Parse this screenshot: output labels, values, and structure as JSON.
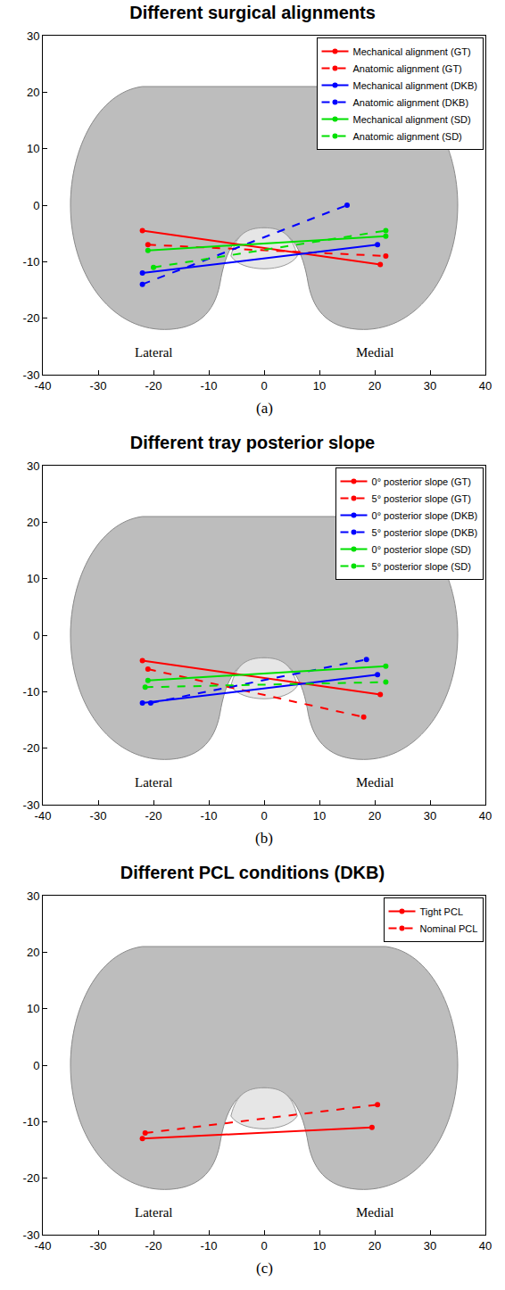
{
  "chart_data": [
    {
      "type": "line",
      "title": "Different surgical alignments",
      "panel_label": "(a)",
      "xlim": [
        -40,
        40
      ],
      "xticks": [
        -40,
        -30,
        -20,
        -10,
        0,
        10,
        20,
        30,
        40
      ],
      "ylim": [
        -30,
        30
      ],
      "yticks": [
        -30,
        -20,
        -10,
        0,
        10,
        20,
        30
      ],
      "grid": false,
      "legend": "upper right",
      "annotations": [
        {
          "text": "Lateral",
          "x": -20,
          "y": -26
        },
        {
          "text": "Medial",
          "x": 20,
          "y": -26
        }
      ],
      "series": [
        {
          "name": "Mechanical alignment (GT)",
          "color": "#ff0000",
          "line_style": "solid",
          "marker": "circle",
          "x": [
            -22,
            21
          ],
          "values": [
            -4.5,
            -10.5
          ]
        },
        {
          "name": "Anatomic alignment (GT)",
          "color": "#ff0000",
          "line_style": "dash",
          "marker": "circle",
          "x": [
            -21,
            22
          ],
          "values": [
            -7,
            -9
          ]
        },
        {
          "name": "Mechanical alignment (DKB)",
          "color": "#0000ff",
          "line_style": "solid",
          "marker": "circle",
          "x": [
            -22,
            20.5
          ],
          "values": [
            -12,
            -7
          ]
        },
        {
          "name": "Anatomic alignment (DKB)",
          "color": "#0000ff",
          "line_style": "dash",
          "marker": "circle",
          "x": [
            -22,
            15
          ],
          "values": [
            -14,
            0
          ]
        },
        {
          "name": "Mechanical alignment (SD)",
          "color": "#00e000",
          "line_style": "solid",
          "marker": "circle",
          "x": [
            -21,
            22
          ],
          "values": [
            -8,
            -5.5
          ]
        },
        {
          "name": "Anatomic alignment (SD)",
          "color": "#00e000",
          "line_style": "dash",
          "marker": "circle",
          "x": [
            -20,
            22
          ],
          "values": [
            -11,
            -4.5
          ]
        }
      ]
    },
    {
      "type": "line",
      "title": "Different tray posterior slope",
      "panel_label": "(b)",
      "xlim": [
        -40,
        40
      ],
      "xticks": [
        -40,
        -30,
        -20,
        -10,
        0,
        10,
        20,
        30,
        40
      ],
      "ylim": [
        -30,
        30
      ],
      "yticks": [
        -30,
        -20,
        -10,
        0,
        10,
        20,
        30
      ],
      "grid": false,
      "legend": "upper right",
      "annotations": [
        {
          "text": "Lateral",
          "x": -20,
          "y": -26
        },
        {
          "text": "Medial",
          "x": 20,
          "y": -26
        }
      ],
      "series": [
        {
          "name": "0° posterior slope (GT)",
          "color": "#ff0000",
          "line_style": "solid",
          "marker": "circle",
          "x": [
            -22,
            21
          ],
          "values": [
            -4.5,
            -10.5
          ]
        },
        {
          "name": "5° posterior slope (GT)",
          "color": "#ff0000",
          "line_style": "dash",
          "marker": "circle",
          "x": [
            -21,
            18
          ],
          "values": [
            -6,
            -14.5
          ]
        },
        {
          "name": "0° posterior slope (DKB)",
          "color": "#0000ff",
          "line_style": "solid",
          "marker": "circle",
          "x": [
            -22,
            20.5
          ],
          "values": [
            -12,
            -7
          ]
        },
        {
          "name": "5° posterior slope (DKB)",
          "color": "#0000ff",
          "line_style": "dash",
          "marker": "circle",
          "x": [
            -20.5,
            18.5
          ],
          "values": [
            -12,
            -4.3
          ]
        },
        {
          "name": "0° posterior slope (SD)",
          "color": "#00e000",
          "line_style": "solid",
          "marker": "circle",
          "x": [
            -21,
            22
          ],
          "values": [
            -8,
            -5.5
          ]
        },
        {
          "name": "5° posterior slope (SD)",
          "color": "#00e000",
          "line_style": "dash",
          "marker": "circle",
          "x": [
            -21.5,
            22
          ],
          "values": [
            -9.2,
            -8.3
          ]
        }
      ]
    },
    {
      "type": "line",
      "title": "Different PCL conditions (DKB)",
      "panel_label": "(c)",
      "xlim": [
        -40,
        40
      ],
      "xticks": [
        -40,
        -30,
        -20,
        -10,
        0,
        10,
        20,
        30,
        40
      ],
      "ylim": [
        -30,
        30
      ],
      "yticks": [
        -30,
        -20,
        -10,
        0,
        10,
        20,
        30
      ],
      "grid": false,
      "legend": "upper right",
      "annotations": [
        {
          "text": "Lateral",
          "x": -20,
          "y": -26
        },
        {
          "text": "Medial",
          "x": 20,
          "y": -26
        }
      ],
      "series": [
        {
          "name": "Tight PCL",
          "color": "#ff0000",
          "line_style": "solid",
          "marker": "circle",
          "x": [
            -22,
            19.5
          ],
          "values": [
            -13,
            -11
          ]
        },
        {
          "name": "Nominal PCL",
          "color": "#ff0000",
          "line_style": "dash",
          "marker": "circle",
          "x": [
            -21.5,
            20.5
          ],
          "values": [
            -12,
            -7
          ]
        }
      ]
    }
  ]
}
